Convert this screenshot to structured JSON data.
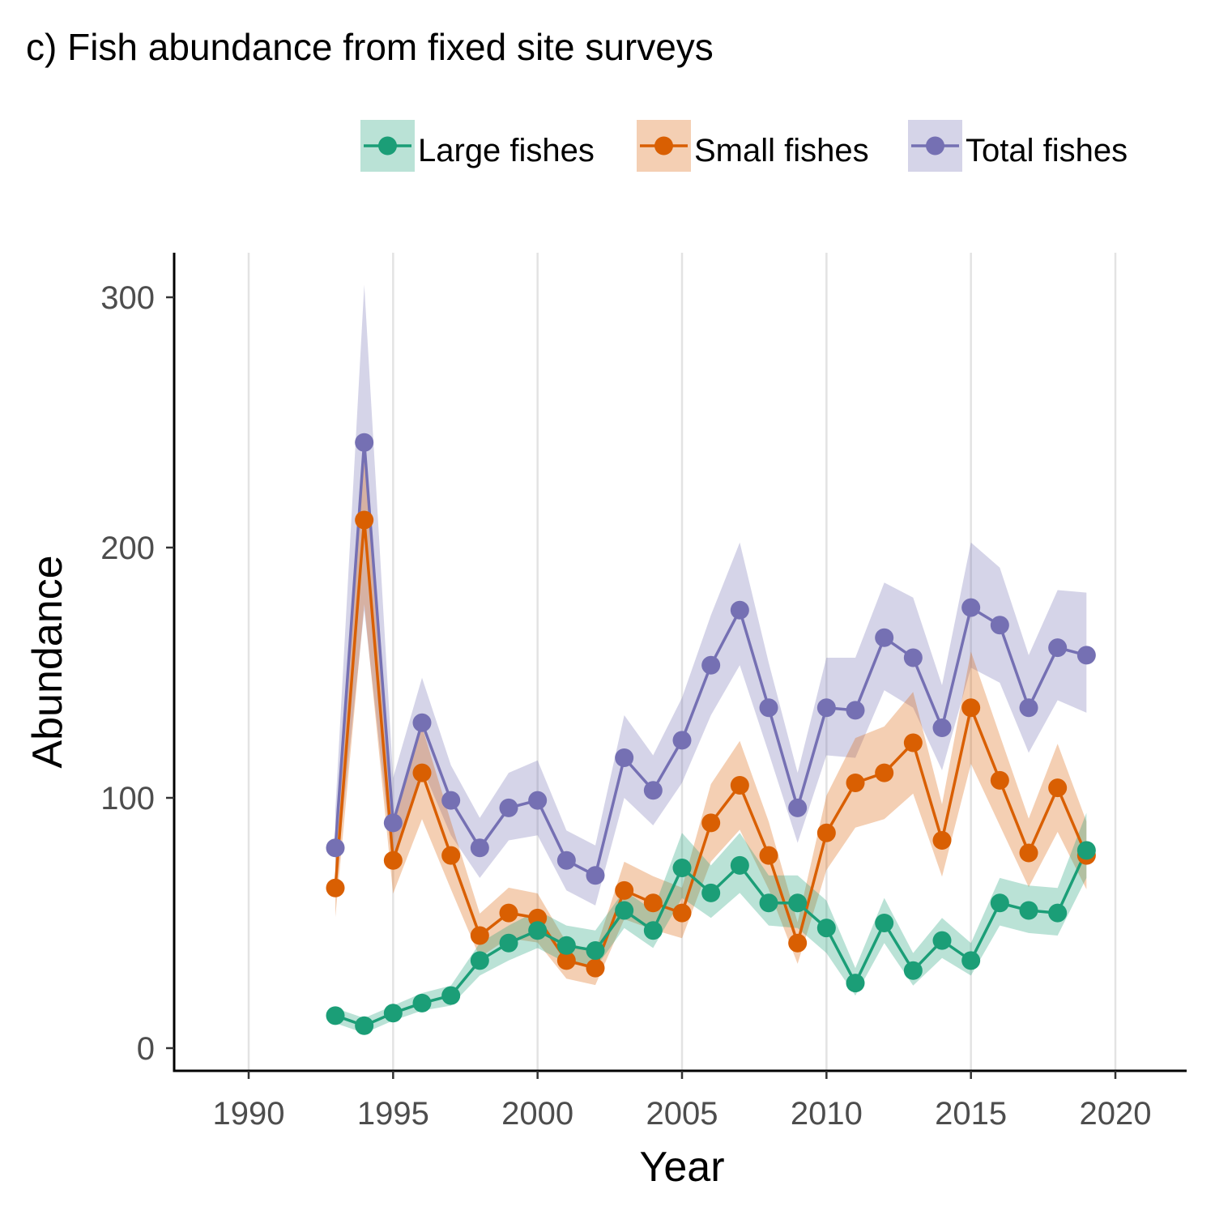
{
  "colors": {
    "large": "#1b9e77",
    "small": "#d95f02",
    "total": "#7570b3",
    "grid": "#e3e3e3",
    "axis": "#000000"
  },
  "chart_data": {
    "type": "line",
    "title": "c) Fish abundance from fixed site surveys",
    "xlabel": "Year",
    "ylabel": "Abundance",
    "xlim": [
      1987.4,
      1822.6
    ],
    "ylim": [
      -8,
      317
    ],
    "xticks": [
      1990,
      1995,
      2000,
      2005,
      2010,
      2015,
      2020
    ],
    "yticks": [
      0,
      100,
      200,
      300
    ],
    "grid": "vertical major lines only",
    "legend_position": "top-right",
    "x": [
      1993,
      1994,
      1995,
      1996,
      1997,
      1998,
      1999,
      2000,
      2001,
      2002,
      2003,
      2004,
      2005,
      2006,
      2007,
      2008,
      2009,
      2010,
      2011,
      2012,
      2013,
      2014,
      2015,
      2016,
      2017,
      2018,
      2019
    ],
    "series": [
      {
        "key": "large",
        "name": "Large fishes",
        "values": [
          13,
          9,
          14,
          18,
          21,
          35,
          42,
          47,
          41,
          39,
          55,
          47,
          72,
          62,
          73,
          58,
          58,
          48,
          26,
          50,
          31,
          43,
          35,
          58,
          55,
          54,
          79
        ],
        "lower": [
          10,
          6,
          11,
          15,
          17,
          29,
          35,
          40,
          34,
          32,
          48,
          40,
          60,
          52,
          62,
          49,
          48,
          38,
          21,
          42,
          25,
          36,
          29,
          49,
          46,
          45,
          68
        ],
        "upper": [
          16,
          12,
          17,
          22,
          25,
          42,
          49,
          55,
          49,
          47,
          63,
          55,
          86,
          73,
          86,
          69,
          69,
          59,
          32,
          60,
          38,
          52,
          42,
          68,
          65,
          64,
          94
        ]
      },
      {
        "key": "small",
        "name": "Small fishes",
        "values": [
          64,
          211,
          75,
          110,
          77,
          45,
          54,
          52,
          35,
          32,
          63,
          58,
          54,
          90,
          105,
          77,
          42,
          86,
          106,
          110,
          122,
          83,
          136,
          107,
          78,
          104,
          77
        ]
      },
      {
        "key": "total",
        "name": "Total fishes",
        "values": [
          80,
          242,
          90,
          130,
          99,
          80,
          96,
          99,
          75,
          69,
          116,
          103,
          123,
          153,
          175,
          136,
          96,
          136,
          135,
          164,
          156,
          128,
          176,
          169,
          136,
          160,
          157
        ],
        "lower": [
          65,
          175,
          72,
          112,
          85,
          68,
          83,
          85,
          63,
          57,
          100,
          89,
          106,
          133,
          153,
          118,
          82,
          117,
          116,
          143,
          136,
          111,
          152,
          146,
          118,
          139,
          134
        ],
        "upper": [
          95,
          305,
          108,
          148,
          113,
          92,
          110,
          115,
          87,
          81,
          133,
          117,
          140,
          173,
          202,
          154,
          110,
          156,
          156,
          186,
          180,
          145,
          202,
          192,
          157,
          183,
          182
        ]
      }
    ]
  }
}
